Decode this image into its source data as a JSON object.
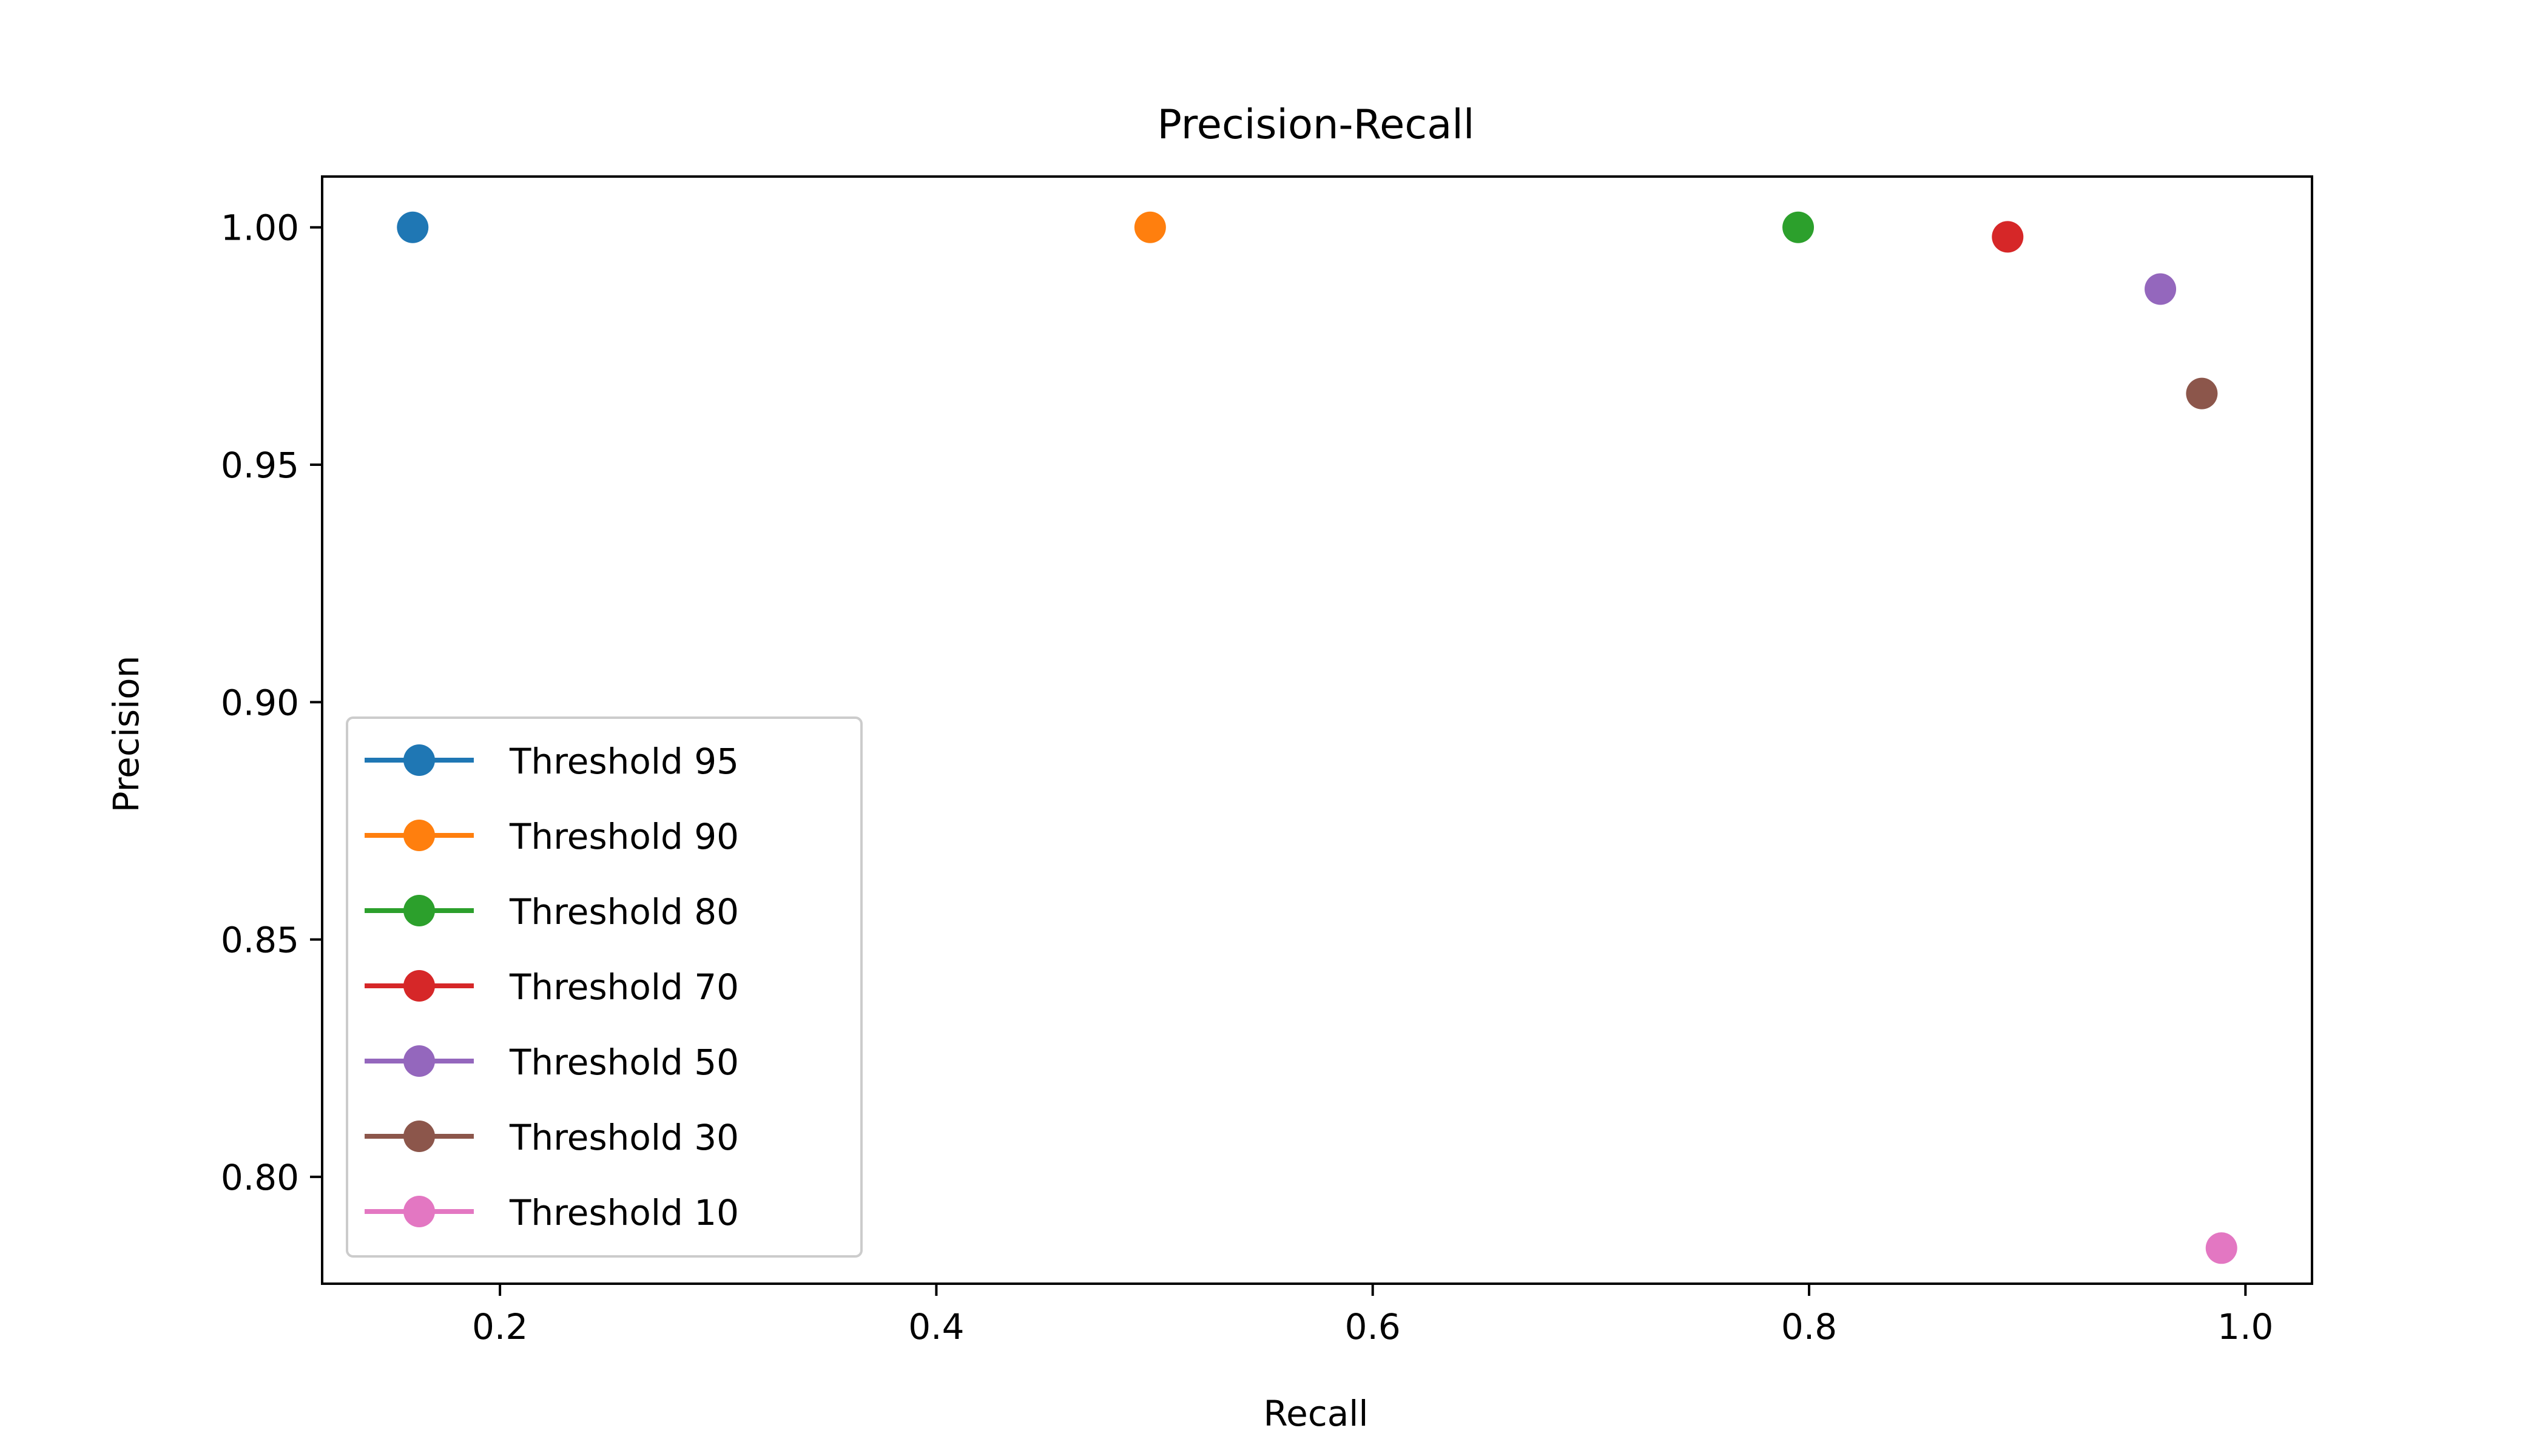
{
  "chart_data": {
    "type": "scatter",
    "title": "Precision-Recall",
    "xlabel": "Recall",
    "ylabel": "Precision",
    "xlim": [
      0.1185,
      1.0305
    ],
    "ylim": [
      0.7775,
      1.0107
    ],
    "xticks": [
      {
        "value": 0.2,
        "label": "0.2"
      },
      {
        "value": 0.4,
        "label": "0.4"
      },
      {
        "value": 0.6,
        "label": "0.6"
      },
      {
        "value": 0.8,
        "label": "0.8"
      },
      {
        "value": 1.0,
        "label": "1.0"
      }
    ],
    "yticks": [
      {
        "value": 0.8,
        "label": "0.80"
      },
      {
        "value": 0.85,
        "label": "0.85"
      },
      {
        "value": 0.9,
        "label": "0.90"
      },
      {
        "value": 0.95,
        "label": "0.95"
      },
      {
        "value": 1.0,
        "label": "1.00"
      }
    ],
    "grid": false,
    "legend_position": "lower-left",
    "series": [
      {
        "name": "Threshold 95",
        "color": "#1f77b4",
        "x": [
          0.16
        ],
        "y": [
          1.0
        ]
      },
      {
        "name": "Threshold 90",
        "color": "#ff7f0e",
        "x": [
          0.498
        ],
        "y": [
          1.0
        ]
      },
      {
        "name": "Threshold 80",
        "color": "#2ca02c",
        "x": [
          0.795
        ],
        "y": [
          1.0
        ]
      },
      {
        "name": "Threshold 70",
        "color": "#d62728",
        "x": [
          0.891
        ],
        "y": [
          0.998
        ]
      },
      {
        "name": "Threshold 50",
        "color": "#9467bd",
        "x": [
          0.961
        ],
        "y": [
          0.987
        ]
      },
      {
        "name": "Threshold 30",
        "color": "#8c564b",
        "x": [
          0.98
        ],
        "y": [
          0.965
        ]
      },
      {
        "name": "Threshold 10",
        "color": "#e377c2",
        "x": [
          0.989
        ],
        "y": [
          0.785
        ]
      }
    ]
  }
}
